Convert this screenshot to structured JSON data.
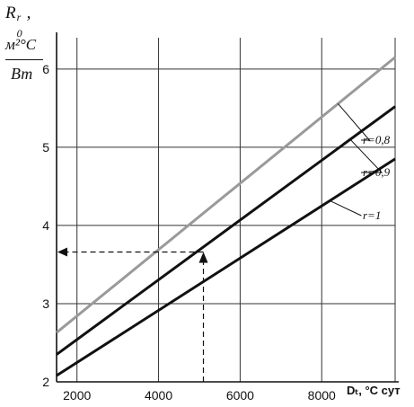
{
  "chart_data": {
    "type": "line",
    "ylabel": {
      "symbol": "R",
      "subscript": "0",
      "superscript": "r",
      "comma": ",",
      "unit_num": "м²°С",
      "unit_den": "Вт"
    },
    "xlabel": "Dₜ, °C сут",
    "xlim": [
      1500,
      9800
    ],
    "ylim": [
      2,
      6.4
    ],
    "xticks": [
      2000,
      4000,
      6000,
      8000
    ],
    "yticks": [
      2,
      3,
      4,
      5,
      6
    ],
    "grid": true,
    "series": [
      {
        "name": "r=0,8",
        "color": "#9a9a9a",
        "x": [
          1500,
          9800
        ],
        "y": [
          2.63,
          6.15
        ]
      },
      {
        "name": "r=0,9",
        "color": "#111111",
        "x": [
          1500,
          9800
        ],
        "y": [
          2.35,
          5.52
        ]
      },
      {
        "name": "r=1",
        "color": "#111111",
        "x": [
          1500,
          9800
        ],
        "y": [
          2.08,
          4.85
        ]
      }
    ],
    "annotation": {
      "type": "dashed-arrows",
      "x_value": 5100,
      "y_value": 3.66,
      "color": "#111111"
    }
  }
}
